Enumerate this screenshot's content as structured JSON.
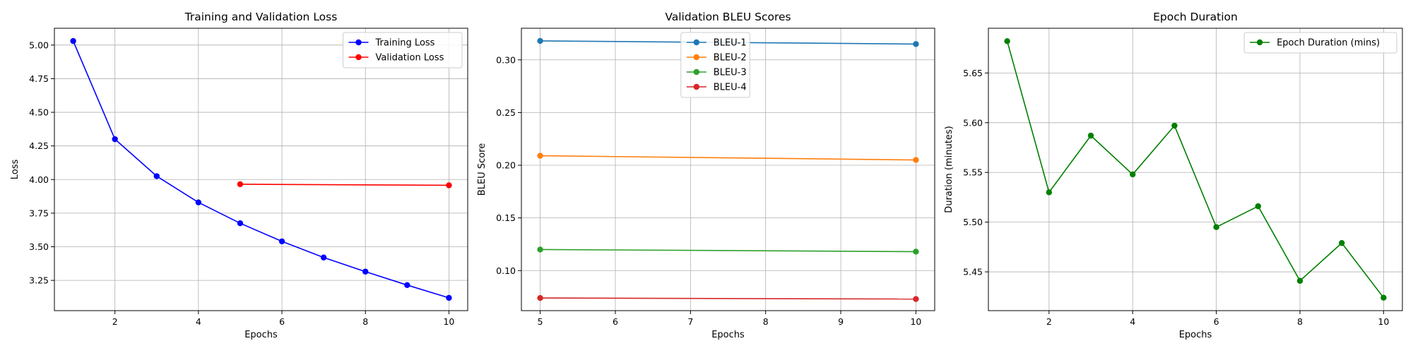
{
  "chart_data": [
    {
      "type": "line",
      "title": "Training and Validation Loss",
      "xlabel": "Epochs",
      "ylabel": "Loss",
      "xlim": [
        0.55,
        10.45
      ],
      "ylim": [
        3.025,
        5.125
      ],
      "xticks": [
        2,
        4,
        6,
        8,
        10
      ],
      "yticks": [
        3.25,
        3.5,
        3.75,
        4.0,
        4.25,
        4.5,
        4.75,
        5.0
      ],
      "ytick_labels": [
        "3.25",
        "3.50",
        "3.75",
        "4.00",
        "4.25",
        "4.50",
        "4.75",
        "5.00"
      ],
      "grid": true,
      "legend_position": "top-right",
      "series": [
        {
          "name": "Training Loss",
          "color": "#0000ff",
          "x": [
            1,
            2,
            3,
            4,
            5,
            6,
            7,
            8,
            9,
            10
          ],
          "y": [
            5.03,
            4.3,
            4.025,
            3.83,
            3.675,
            3.54,
            3.42,
            3.315,
            3.215,
            3.12
          ]
        },
        {
          "name": "Validation Loss",
          "color": "#ff0000",
          "x": [
            5,
            10
          ],
          "y": [
            3.965,
            3.957
          ]
        }
      ]
    },
    {
      "type": "line",
      "title": "Validation BLEU Scores",
      "xlabel": "Epochs",
      "ylabel": "BLEU Score",
      "xlim": [
        4.75,
        10.25
      ],
      "ylim": [
        0.062,
        0.33
      ],
      "xticks": [
        5,
        6,
        7,
        8,
        9,
        10
      ],
      "yticks": [
        0.1,
        0.15,
        0.2,
        0.25,
        0.3
      ],
      "ytick_labels": [
        "0.10",
        "0.15",
        "0.20",
        "0.25",
        "0.30"
      ],
      "grid": true,
      "legend_position": "upper-center",
      "series": [
        {
          "name": "BLEU-1",
          "color": "#1f77b4",
          "x": [
            5,
            10
          ],
          "y": [
            0.318,
            0.315
          ]
        },
        {
          "name": "BLEU-2",
          "color": "#ff7f0e",
          "x": [
            5,
            10
          ],
          "y": [
            0.209,
            0.205
          ]
        },
        {
          "name": "BLEU-3",
          "color": "#2ca02c",
          "x": [
            5,
            10
          ],
          "y": [
            0.12,
            0.118
          ]
        },
        {
          "name": "BLEU-4",
          "color": "#d62728",
          "x": [
            5,
            10
          ],
          "y": [
            0.074,
            0.073
          ]
        }
      ]
    },
    {
      "type": "line",
      "title": "Epoch Duration",
      "xlabel": "Epochs",
      "ylabel": "Duration (minutes)",
      "xlim": [
        0.55,
        10.45
      ],
      "ylim": [
        5.411,
        5.695
      ],
      "xticks": [
        2,
        4,
        6,
        8,
        10
      ],
      "yticks": [
        5.45,
        5.5,
        5.55,
        5.6,
        5.65
      ],
      "ytick_labels": [
        "5.45",
        "5.50",
        "5.55",
        "5.60",
        "5.65"
      ],
      "grid": true,
      "legend_position": "top-right",
      "series": [
        {
          "name": "Epoch Duration (mins)",
          "color": "#008000",
          "x": [
            1,
            2,
            3,
            4,
            5,
            6,
            7,
            8,
            9,
            10
          ],
          "y": [
            5.682,
            5.53,
            5.587,
            5.548,
            5.597,
            5.495,
            5.516,
            5.441,
            5.479,
            5.424
          ]
        }
      ]
    }
  ]
}
